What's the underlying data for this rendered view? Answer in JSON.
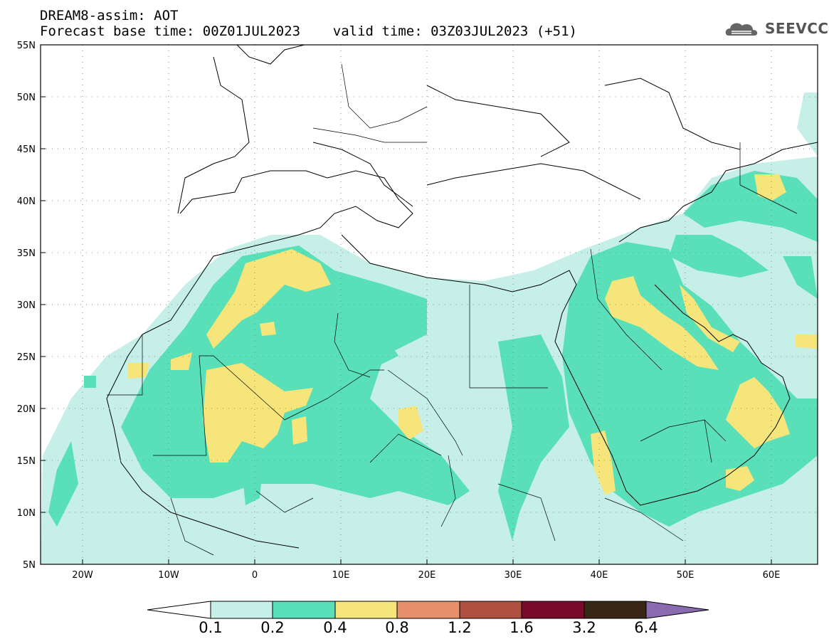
{
  "header": {
    "line1": "DREAM8-assim: AOT",
    "line2": "Forecast base time: 00Z01JUL2023    valid time: 03Z03JUL2023 (+51)"
  },
  "logo": {
    "text": "SEEVCCC",
    "icon": "cloud-logo-icon"
  },
  "map": {
    "lon_range": [
      -25,
      65
    ],
    "lat_range": [
      5,
      55
    ],
    "lat_labels": [
      "55N",
      "50N",
      "45N",
      "40N",
      "35N",
      "30N",
      "25N",
      "20N",
      "15N",
      "10N",
      "5N"
    ],
    "lon_labels": [
      "20W",
      "10W",
      "0",
      "10E",
      "20E",
      "30E",
      "40E",
      "50E",
      "60E"
    ],
    "grid": "dotted"
  },
  "colorbar": {
    "labels": [
      "0.1",
      "0.2",
      "0.4",
      "0.8",
      "1.2",
      "1.6",
      "3.2",
      "6.4"
    ],
    "colors": [
      "#ffffff",
      "#c6efe8",
      "#5ae0b8",
      "#f5e57a",
      "#e8906a",
      "#b05040",
      "#7a0a2c",
      "#3a2614",
      "#8a6bb0"
    ]
  }
}
